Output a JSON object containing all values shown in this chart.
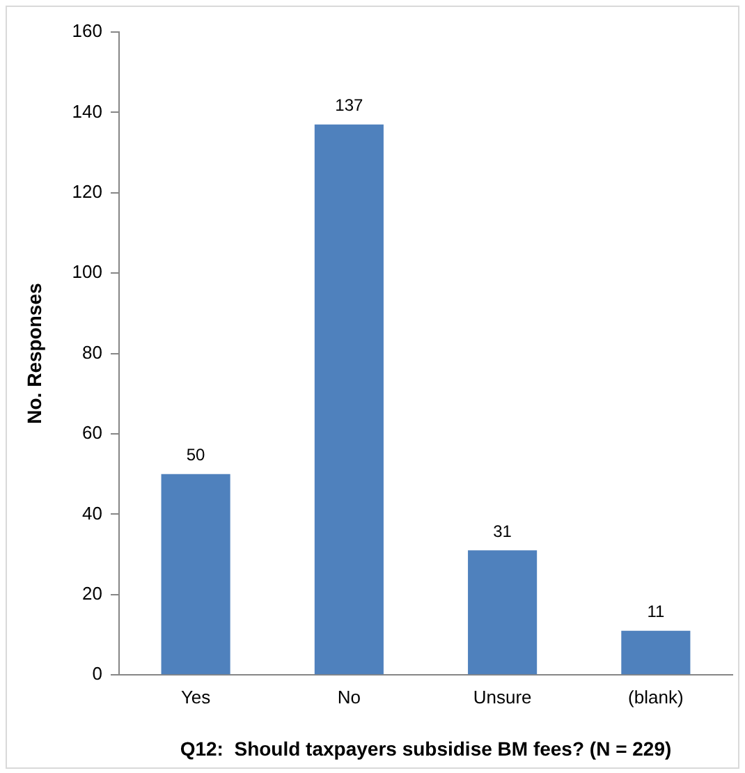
{
  "chart_data": {
    "type": "bar",
    "xlabel": "Q12:  Should taxpayers subsidise BM fees? (N = 229)",
    "ylabel": "No. Responses",
    "categories": [
      "Yes",
      "No",
      "Unsure",
      "(blank)"
    ],
    "values": [
      50,
      137,
      31,
      11
    ],
    "color": "#4f81bd",
    "ylim": [
      0,
      160
    ],
    "yticks": [
      0,
      20,
      40,
      60,
      80,
      100,
      120,
      140,
      160
    ],
    "data_labels": true,
    "grid": false,
    "legend": false
  }
}
